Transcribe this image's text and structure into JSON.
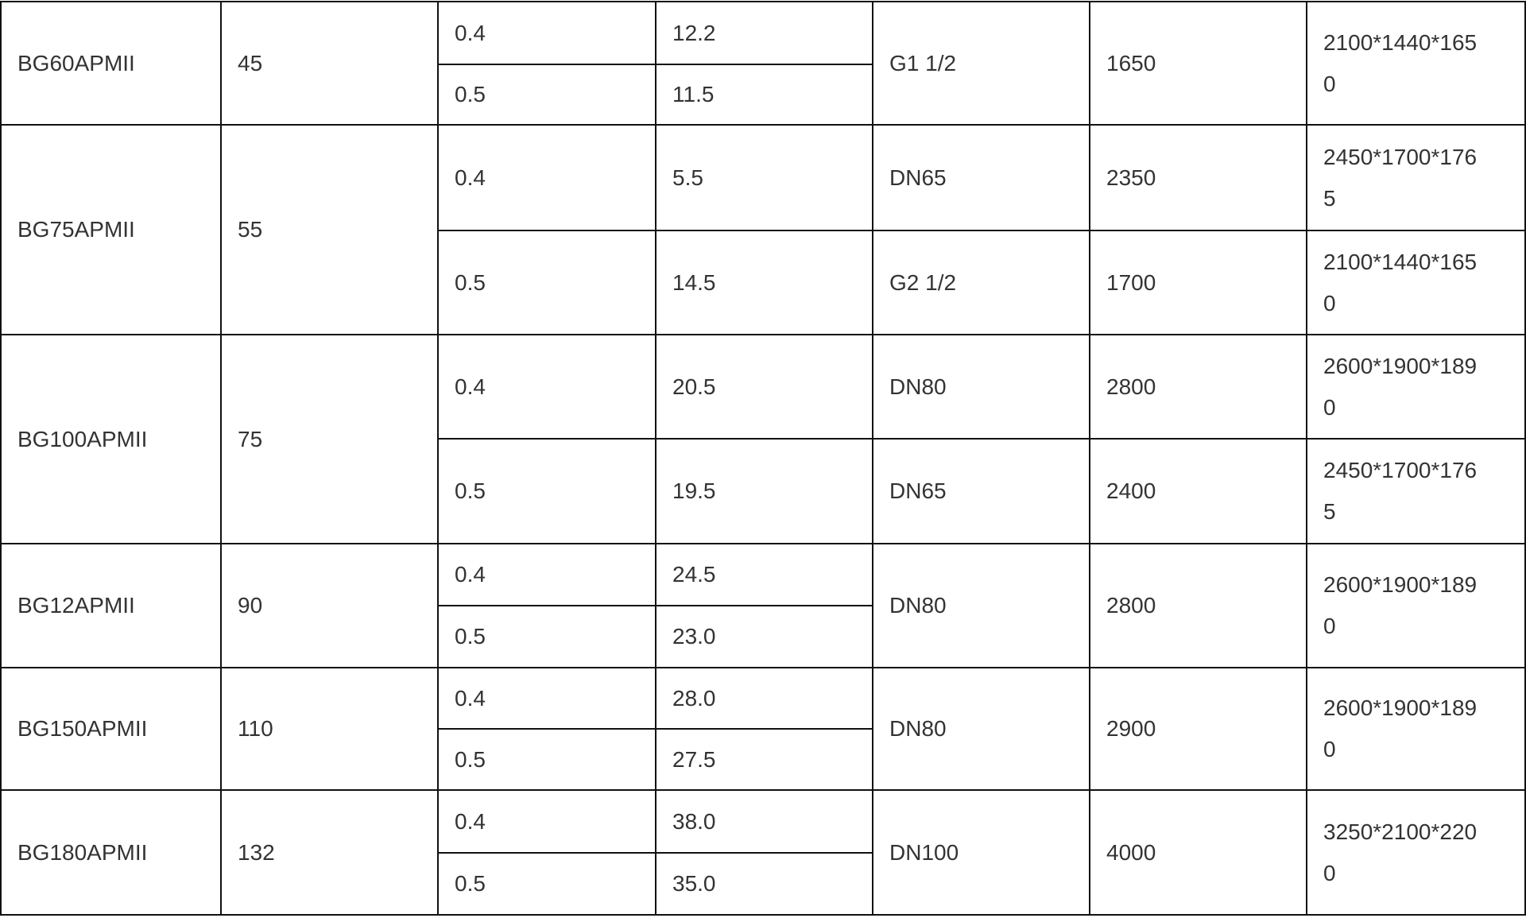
{
  "rows": [
    {
      "model": "BG60APMII",
      "power": "45",
      "sub": [
        {
          "pressure": "0.4",
          "flow": "12.2",
          "outlet": "G1 1/2",
          "weight": "1650",
          "dims": "2100*1440*1650"
        },
        {
          "pressure": "0.5",
          "flow": "11.5"
        }
      ]
    },
    {
      "model": "BG75APMII",
      "power": "55",
      "sub": [
        {
          "pressure": "0.4",
          "flow": "5.5",
          "outlet": "DN65",
          "weight": "2350",
          "dims": "2450*1700*1765"
        },
        {
          "pressure": "0.5",
          "flow": "14.5",
          "outlet": "G2 1/2",
          "weight": "1700",
          "dims": "2100*1440*1650"
        }
      ]
    },
    {
      "model": "BG100APMII",
      "power": "75",
      "sub": [
        {
          "pressure": "0.4",
          "flow": "20.5",
          "outlet": "DN80",
          "weight": "2800",
          "dims": "2600*1900*1890"
        },
        {
          "pressure": "0.5",
          "flow": "19.5",
          "outlet": "DN65",
          "weight": "2400",
          "dims": "2450*1700*1765"
        }
      ]
    },
    {
      "model": "BG12APMII",
      "power": "90",
      "sub": [
        {
          "pressure": "0.4",
          "flow": "24.5",
          "outlet": "DN80",
          "weight": "2800",
          "dims": "2600*1900*1890"
        },
        {
          "pressure": "0.5",
          "flow": "23.0"
        }
      ]
    },
    {
      "model": "BG150APMII",
      "power": "110",
      "sub": [
        {
          "pressure": "0.4",
          "flow": "28.0",
          "outlet": "DN80",
          "weight": "2900",
          "dims": "2600*1900*1890"
        },
        {
          "pressure": "0.5",
          "flow": "27.5"
        }
      ]
    },
    {
      "model": "BG180APMII",
      "power": "132",
      "sub": [
        {
          "pressure": "0.4",
          "flow": "38.0",
          "outlet": "DN100",
          "weight": "4000",
          "dims": "3250*2100*2200"
        },
        {
          "pressure": "0.5",
          "flow": "35.0"
        }
      ]
    }
  ]
}
